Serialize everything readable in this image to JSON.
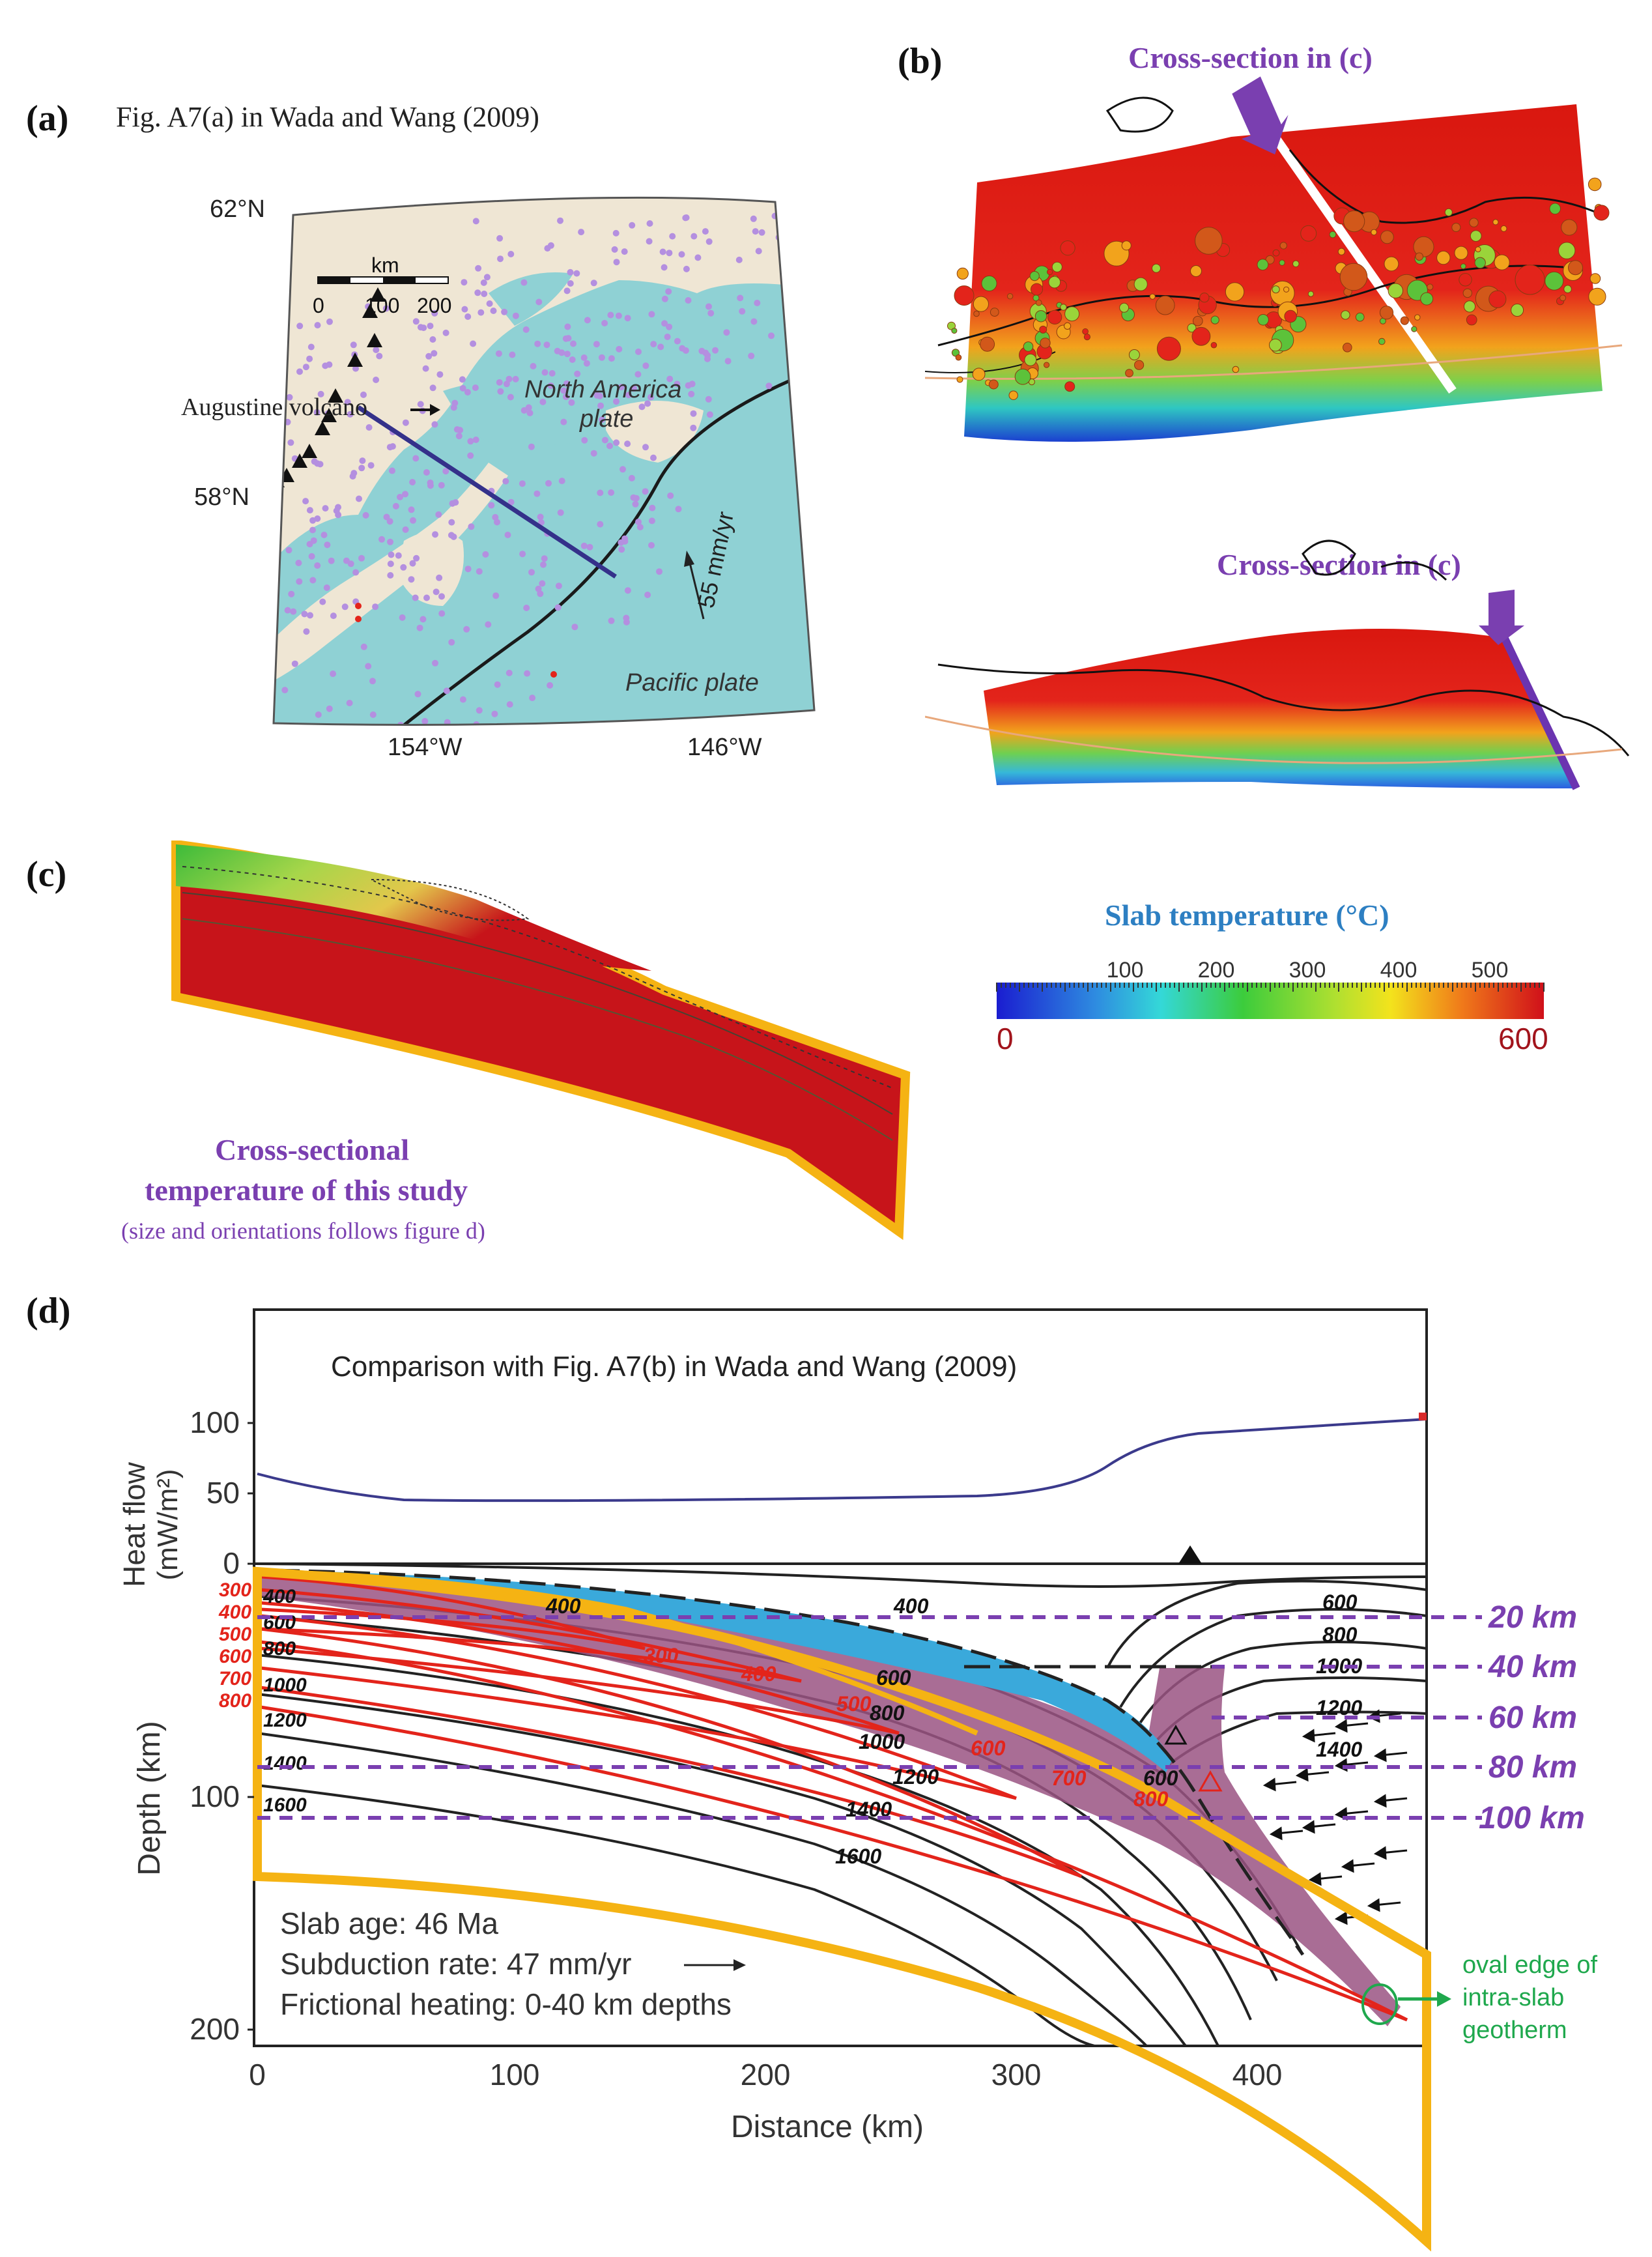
{
  "panel_a": {
    "label": "(a)",
    "caption": "Fig. A7(a) in Wada and Wang (2009)",
    "lat_top": "62°N",
    "lat_mid": "58°N",
    "lon_left": "154°W",
    "lon_right": "146°W",
    "scale_unit": "km",
    "scale_ticks": [
      "0",
      "100",
      "200"
    ],
    "volcano_label": "Augustine volcano",
    "plate_na_1": "North America",
    "plate_na_2": "plate",
    "plate_pac": "Pacific plate",
    "rate": "55 mm/yr",
    "colors": {
      "land": "#efe6d4",
      "sea": "#8fd1d4",
      "quakes": "#b48fe0",
      "profile": "#34318a"
    }
  },
  "panel_b": {
    "label": "(b)",
    "arrow_label_top": "Cross-section in (c)",
    "arrow_label_bottom": "Cross-section in (c)"
  },
  "panel_c": {
    "label": "(c)",
    "caption_line1": "Cross-sectional",
    "caption_line2": "temperature of this study",
    "caption_note": "(size and orientations follows figure d)"
  },
  "colorbar": {
    "title": "Slab temperature (°C)",
    "ticks": [
      "100",
      "200",
      "300",
      "400",
      "500"
    ],
    "min_label": "0",
    "max_label": "600"
  },
  "panel_d": {
    "label": "(d)",
    "caption": "Comparison with Fig. A7(b) in Wada and Wang (2009)",
    "heat_flow_label": "Heat flow",
    "heat_flow_unit": "(mW/m²)",
    "heat_ticks": [
      "0",
      "50",
      "100"
    ],
    "depth_label": "Depth (km)",
    "depth_ticks": [
      "100",
      "200"
    ],
    "distance_label": "Distance (km)",
    "distance_ticks": [
      "0",
      "100",
      "200",
      "300",
      "400"
    ],
    "info": [
      "Slab age: 46 Ma",
      "Subduction rate: 47 mm/yr",
      "Frictional heating: 0-40 km depths"
    ],
    "depth_markers": [
      "20 km",
      "40 km",
      "60 km",
      "80 km",
      "100 km"
    ],
    "black_isotherms": [
      "400",
      "600",
      "800",
      "1000",
      "1200",
      "1400",
      "1600"
    ],
    "black_isotherms_right": [
      "600",
      "800",
      "1000",
      "1200",
      "1400",
      "600"
    ],
    "red_isotherms": [
      "300",
      "400",
      "500",
      "600",
      "700",
      "800"
    ],
    "inner_red_isotherms": [
      "300",
      "400",
      "500",
      "600",
      "700",
      "800"
    ],
    "inner_black_isotherms": [
      "400",
      "600",
      "800",
      "1000",
      "1200",
      "1400",
      "1600"
    ],
    "oval_note": [
      "oval edge of",
      "intra-slab",
      "geotherm"
    ],
    "colors": {
      "heatflow": "#3b3a8c",
      "marker": "#7a3fb0",
      "outline": "#f5b313",
      "red": "#e3241b",
      "slab": "#8e3f77",
      "channel": "#3aa9db",
      "note": "#1fa84d"
    }
  }
}
